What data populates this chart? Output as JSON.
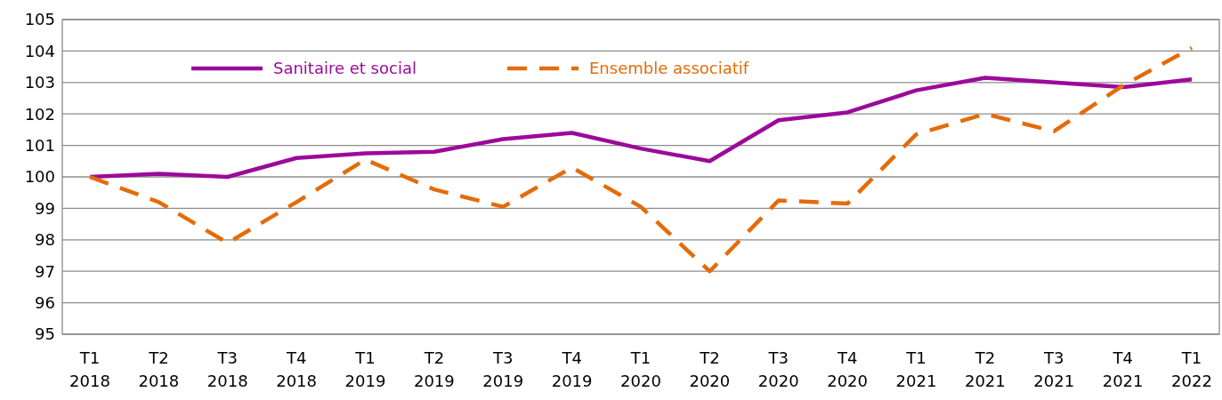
{
  "chart_data": {
    "type": "line",
    "categories": [
      "T1 2018",
      "T2 2018",
      "T3 2018",
      "T4 2018",
      "T1 2019",
      "T2 2019",
      "T3 2019",
      "T4 2019",
      "T1 2020",
      "T2 2020",
      "T3 2020",
      "T4 2020",
      "T1 2021",
      "T2 2021",
      "T3 2021",
      "T4 2021",
      "T1 2022"
    ],
    "series": [
      {
        "name": "Sanitaire et social",
        "color": "#9b0a9a",
        "line_style": "solid",
        "values": [
          100,
          100.1,
          100,
          100.6,
          100.75,
          100.8,
          101.2,
          101.4,
          100.9,
          100.5,
          101.8,
          102.05,
          102.75,
          103.15,
          103.0,
          102.85,
          103.1
        ]
      },
      {
        "name": "Ensemble associatif",
        "color": "#e36c0a",
        "line_style": "dashed",
        "values": [
          100,
          99.2,
          97.9,
          99.2,
          100.55,
          99.6,
          99.05,
          100.3,
          99.05,
          97.0,
          99.25,
          99.15,
          101.35,
          102.0,
          101.45,
          102.9,
          104.1
        ]
      }
    ],
    "ylim": [
      95,
      105
    ],
    "yticks": [
      95,
      96,
      97,
      98,
      99,
      100,
      101,
      102,
      103,
      104,
      105
    ],
    "grid": "y",
    "legend": "top left"
  }
}
